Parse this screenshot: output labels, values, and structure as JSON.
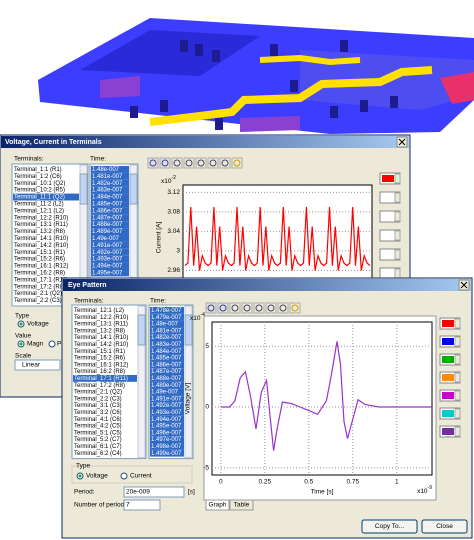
{
  "chart_data": [
    {
      "type": "line",
      "y_label": "Current [A]",
      "y_multiplier": {
        "base": "x10",
        "exponent": "-2"
      },
      "ylim": [
        2.92,
        3.135
      ],
      "yticks": [
        2.96,
        3,
        3.04,
        3.08,
        3.12
      ],
      "grid": true,
      "series": [
        {
          "color": "#ff0000",
          "values": [
            2.97,
            2.975,
            3.09,
            2.97,
            3.05,
            2.96,
            2.99,
            2.975,
            2.97,
            2.975,
            3.09,
            2.97,
            3.05,
            2.96,
            2.99,
            2.975,
            2.97,
            2.975,
            3.09,
            2.97,
            3.05,
            2.96,
            2.99,
            2.975,
            2.97,
            2.975,
            3.09,
            2.97,
            3.05,
            2.96,
            2.99,
            2.975,
            2.97,
            2.975,
            3.09,
            2.97,
            3.05,
            2.96,
            2.99,
            2.975,
            2.97,
            2.975,
            3.09,
            2.97,
            3.05,
            2.96,
            2.99,
            2.975,
            2.97,
            2.975,
            3.09,
            2.97,
            3.05,
            2.96,
            2.99,
            2.975,
            2.97,
            2.975,
            3.09,
            2.97,
            3.05,
            2.96,
            2.99,
            2.975,
            2.97
          ]
        }
      ]
    },
    {
      "type": "line",
      "x_label": "Time [s]",
      "x_multiplier": {
        "base": "x10",
        "exponent": "-9"
      },
      "y_label": "Voltage [V]",
      "y_multiplier": {
        "base": "x10",
        "exponent": "-4"
      },
      "xlim": [
        -0.05,
        1.2
      ],
      "xticks": [
        0,
        0.25,
        0.5,
        0.75,
        1
      ],
      "ylim": [
        -5.6,
        7
      ],
      "yticks": [
        -5,
        0,
        5
      ],
      "grid": true,
      "x": [
        0,
        0.05,
        0.08,
        0.11,
        0.14,
        0.17,
        0.2,
        0.23,
        0.26,
        0.28,
        0.3,
        0.32,
        0.35,
        0.4,
        0.45,
        0.5,
        0.55,
        0.6,
        0.63,
        0.66,
        0.68,
        0.7,
        0.72,
        0.75,
        0.78,
        0.82,
        0.9,
        1.0,
        1.2
      ],
      "series": [
        {
          "color": "#9933cc",
          "values": [
            0,
            0,
            0.5,
            2.4,
            2.9,
            0.8,
            -1.8,
            1.2,
            2.2,
            -0.8,
            -3.6,
            -1.8,
            0.4,
            0.3,
            0,
            -0.3,
            -0.6,
            0.5,
            2.8,
            5.4,
            3.5,
            -1.2,
            -2.6,
            -1,
            0.6,
            0.2,
            0,
            0,
            0
          ]
        }
      ]
    }
  ],
  "dialogs": [
    {
      "title": "Voltage, Current in Terminals",
      "terminals_label": "Terminals:",
      "time_label": "Time:",
      "terminals": [
        "Terminal_1:1 (R1)",
        "Terminal_1:2 (C6)",
        "Terminal_10:1 (Q2)",
        "Terminal_10:2 (R5)",
        "Terminal_11:1 (Q2)",
        "Terminal_11:2 (L2)",
        "Terminal_12:1 (L2)",
        "Terminal_12:2 (R10)",
        "Terminal_13:1 (R11)",
        "Terminal_13:2 (R8)",
        "Terminal_14:1 (R10)",
        "Terminal_14:2 (R10)",
        "Terminal_15:1 (R1)",
        "Terminal_15:2 (R6)",
        "Terminal_16:1 (R12)",
        "Terminal_16:2 (R8)",
        "Terminal_17:1 (R11)",
        "Terminal_17:2 (R8)",
        "Terminal_2:1 (Q2)",
        "Terminal_2:2 (C3)"
      ],
      "selected_terminal": 4,
      "times": [
        "1.48e-007",
        "1.481e-007",
        "1.482e-007",
        "1.483e-007",
        "1.484e-007",
        "1.485e-007",
        "1.486e-007",
        "1.487e-007",
        "1.488e-007",
        "1.489e-007",
        "1.49e-007",
        "1.491e-007",
        "1.492e-007",
        "1.493e-007",
        "1.494e-007",
        "1.495e-007"
      ],
      "type_label": "Type",
      "type_options": [
        "Voltage"
      ],
      "value_label": "Value",
      "value_options": [
        "Magn",
        "P"
      ],
      "scale_label": "Scale",
      "scale_value": "Linear"
    },
    {
      "title": "Eye Pattern",
      "terminals_label": "Terminals:",
      "time_label": "Time:",
      "terminals": [
        "Terminal_12:1 (L2)",
        "Terminal_12:2 (R10)",
        "Terminal_13:1 (R11)",
        "Terminal_13:2 (R8)",
        "Terminal_14:1 (R10)",
        "Terminal_14:2 (R10)",
        "Terminal_15:1 (R1)",
        "Terminal_15:2 (R6)",
        "Terminal_16:1 (R12)",
        "Terminal_16:2 (R8)",
        "Terminal_17:1 (R11)",
        "Terminal_17:2 (R8)",
        "Terminal_2:1 (Q2)",
        "Terminal_2:2 (C3)",
        "Terminal_3:1 (C3)",
        "Terminal_3:2 (C6)",
        "Terminal_4:1 (C6)",
        "Terminal_4:2 (C5)",
        "Terminal_5:1 (C5)",
        "Terminal_5:2 (C7)",
        "Terminal_6:1 (C7)",
        "Terminal_6:2 (C4)"
      ],
      "selected_terminal": 10,
      "times": [
        "1.478e-007",
        "1.479e-007",
        "1.48e-007",
        "1.481e-007",
        "1.482e-007",
        "1.483e-007",
        "1.484e-007",
        "1.485e-007",
        "1.486e-007",
        "1.487e-007",
        "1.488e-007",
        "1.489e-007",
        "1.49e-007",
        "1.491e-007",
        "1.492e-007",
        "1.493e-007",
        "1.494e-007",
        "1.495e-007",
        "1.496e-007",
        "1.497e-007",
        "1.498e-007",
        "1.499e-007"
      ],
      "type_label": "Type",
      "type_options": [
        "Voltage",
        "Current"
      ],
      "selected_type": 0,
      "period_label": "Period:",
      "period_value": "20e-009",
      "period_unit": "[s]",
      "periods_label": "Number of periods:",
      "periods_value": "7",
      "tabs": [
        "Graph",
        "Table"
      ],
      "buttons": [
        "Copy To...",
        "Close"
      ]
    }
  ]
}
